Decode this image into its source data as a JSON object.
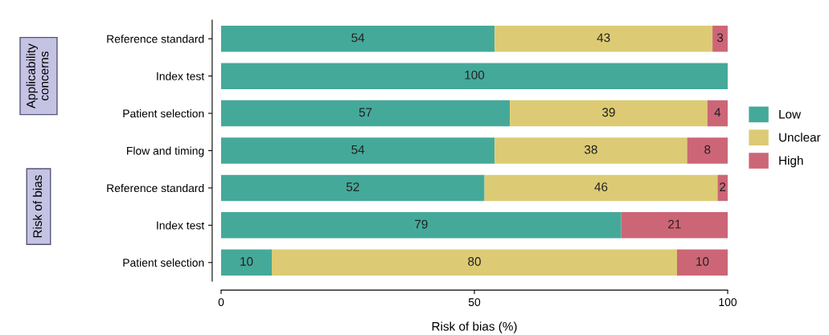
{
  "chart_data": {
    "type": "bar",
    "orientation": "horizontal",
    "stacked": true,
    "categories": [
      "Reference standard",
      "Index test",
      "Patient selection",
      "Flow and timing",
      "Reference standard",
      "Index test",
      "Patient selection"
    ],
    "series": [
      {
        "name": "Low",
        "color": "#45a99a",
        "values": [
          54,
          100,
          57,
          54,
          52,
          79,
          10
        ],
        "value_labels": [
          "54",
          "100",
          "57",
          "54",
          "52",
          "79",
          "10"
        ]
      },
      {
        "name": "Unclear",
        "color": "#dccb74",
        "values": [
          43,
          0,
          39,
          38,
          46,
          0,
          80
        ],
        "value_labels": [
          "43",
          null,
          "39",
          "38",
          "46",
          null,
          "80"
        ]
      },
      {
        "name": "High",
        "color": "#cc6677",
        "values": [
          3,
          0,
          4,
          8,
          2,
          21,
          10
        ],
        "value_labels": [
          "3",
          null,
          "4",
          "8",
          "2",
          "21",
          "10"
        ]
      }
    ],
    "xlim": [
      0,
      100
    ],
    "xticks": [
      0,
      50,
      100
    ],
    "xlabel": "Risk of bias (%)",
    "annotations": [
      "Applicability\nconcerns",
      "Risk of bias"
    ],
    "legend": "right",
    "grid": false
  }
}
